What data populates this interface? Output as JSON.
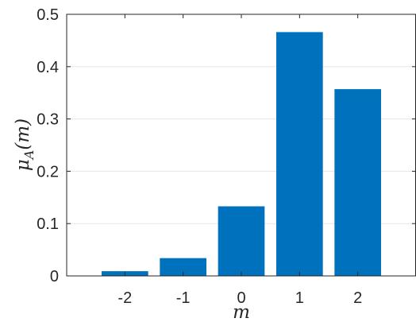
{
  "chart_data": {
    "type": "bar",
    "categories": [
      "-2",
      "-1",
      "0",
      "1",
      "2"
    ],
    "x": [
      -2,
      -1,
      0,
      1,
      2
    ],
    "values": [
      0.009,
      0.034,
      0.133,
      0.466,
      0.357
    ],
    "xlabel": "m",
    "ylabel": "μA(m)",
    "ylabel_parts": {
      "base": "μ",
      "sub": "A",
      "arg": "(m)"
    },
    "xlim": [
      -3,
      3
    ],
    "ylim": [
      0,
      0.5
    ],
    "yticks": [
      0,
      0.1,
      0.2,
      0.3,
      0.4,
      0.5
    ],
    "ytick_labels": [
      "0",
      "0.1",
      "0.2",
      "0.3",
      "0.4",
      "0.5"
    ],
    "grid": "horizontal",
    "bar_color": "#0072BD",
    "legend": "none"
  }
}
